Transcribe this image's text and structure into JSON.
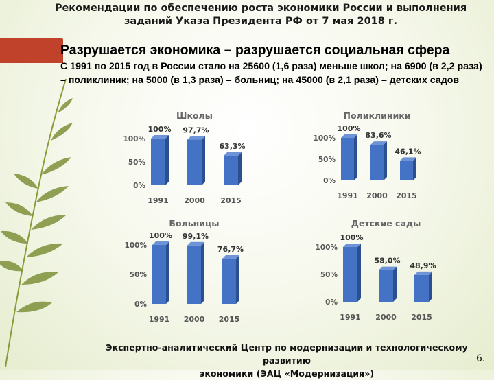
{
  "header": {
    "line1": "Рекомендации по обеспечению роста экономики России и выполнения",
    "line2": "заданий Указа Президента РФ от 7 мая 2018 г."
  },
  "title": "Разрушается экономика – разрушается социальная сфера",
  "subtitle": "С 1991 по 2015 год в России стало на 25600 (1,6 раза) меньше школ; на 6900 (в 2,2 раза) – поликлиник; на 5000 (в 1,3 раза) – больниц; на 45000 (в 2,1 раза) – детских садов",
  "colors": {
    "bar": "#4472c4",
    "bar_side": "#2c4f8f",
    "bar_top": "#6e93d6",
    "accent": "#c0422a"
  },
  "chart_data": [
    {
      "type": "bar",
      "title": "Школы",
      "categories": [
        "1991",
        "2000",
        "2015"
      ],
      "values": [
        100,
        97.7,
        63.3
      ],
      "labels": [
        "100%",
        "97,7%",
        "63,3%"
      ],
      "yticks": [
        "0%",
        "50%",
        "100%"
      ],
      "ylim": [
        0,
        100
      ],
      "grid": false
    },
    {
      "type": "bar",
      "title": "Поликлиники",
      "categories": [
        "1991",
        "2000",
        "2015"
      ],
      "values": [
        100,
        83.6,
        46.1
      ],
      "labels": [
        "100%",
        "83,6%",
        "46,1%"
      ],
      "yticks": [
        "0%",
        "50%",
        "100%"
      ],
      "ylim": [
        0,
        100
      ],
      "grid": false
    },
    {
      "type": "bar",
      "title": "Больницы",
      "categories": [
        "1991",
        "2000",
        "2015"
      ],
      "values": [
        100,
        99.1,
        76.7
      ],
      "labels": [
        "100%",
        "99,1%",
        "76,7%"
      ],
      "yticks": [
        "0%",
        "50%",
        "100%"
      ],
      "ylim": [
        0,
        100
      ],
      "grid": false
    },
    {
      "type": "bar",
      "title": "Детские сады",
      "categories": [
        "1991",
        "2000",
        "2015"
      ],
      "values": [
        100,
        58.0,
        48.9
      ],
      "labels": [
        "100%",
        "58,0%",
        "48,9%"
      ],
      "yticks": [
        "0%",
        "50%",
        "100%"
      ],
      "ylim": [
        0,
        100
      ],
      "grid": false
    }
  ],
  "footer": {
    "line1": "Экспертно-аналитический Центр по модернизации и технологическому развитию",
    "line2": "экономики (ЭАЦ «Модернизация»)"
  },
  "page_number": "6."
}
